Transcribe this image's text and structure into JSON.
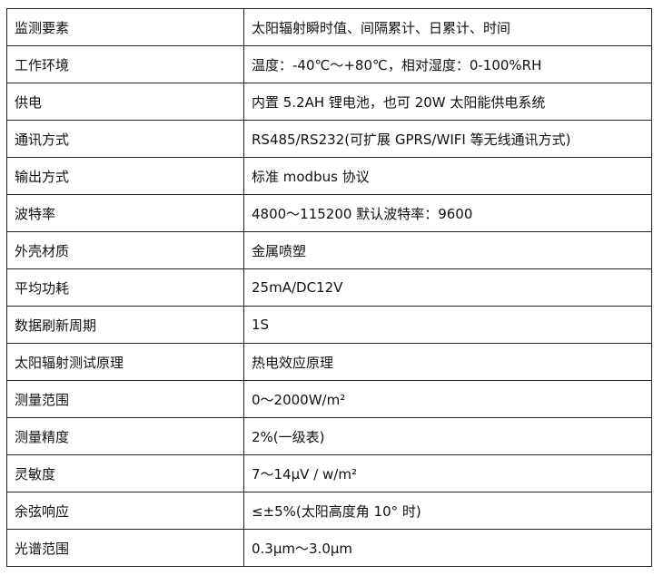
{
  "rows": [
    {
      "label": "监测要素",
      "value": "太阳辐射瞬时值、间隔累计、日累计、时间"
    },
    {
      "label": "工作环境",
      "value": "温度：-40℃～+80℃，相对湿度：0-100%RH"
    },
    {
      "label": "供电",
      "value": "内置 5.2AH 锂电池，也可 20W 太阳能供电系统"
    },
    {
      "label": "通讯方式",
      "value": "RS485/RS232(可扩展 GPRS/WIFI 等无线通讯方式)"
    },
    {
      "label": "输出方式",
      "value": "标准 modbus 协议"
    },
    {
      "label": "波特率",
      "value": "4800～115200  默认波特率：9600"
    },
    {
      "label": "外壳材质",
      "value": "金属喷塑"
    },
    {
      "label": "平均功耗",
      "value": "25mA/DC12V"
    },
    {
      "label": "数据刷新周期",
      "value": "1S"
    },
    {
      "label": "太阳辐射测试原理",
      "value": "热电效应原理"
    },
    {
      "label": "测量范围",
      "value": "0～2000W/m²"
    },
    {
      "label": "测量精度",
      "value": "2%(一级表)"
    },
    {
      "label": "灵敏度",
      "value": "7～14μV / w/m²"
    },
    {
      "label": "余弦响应",
      "value": "≤±5%(太阳高度角 10° 时)"
    },
    {
      "label": "光谱范围",
      "value": "0.3μm～3.0μm"
    }
  ]
}
